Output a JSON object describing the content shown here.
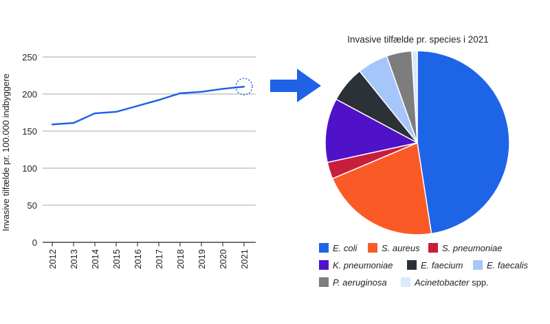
{
  "colors": {
    "line": "#1f62e6",
    "grid": "#a6a6a6",
    "axis": "#222222",
    "arrow": "#1f62e6",
    "highlight_circle": "#1f62e6"
  },
  "chart_data": [
    {
      "type": "line",
      "title": "",
      "xlabel": "",
      "ylabel": "Invasive tilfælde pr. 100.000 indbyggere",
      "x": [
        "2012",
        "2013",
        "2014",
        "2015",
        "2016",
        "2017",
        "2018",
        "2019",
        "2020",
        "2021"
      ],
      "series": [
        {
          "values": [
            159,
            161,
            174,
            176,
            184,
            192,
            201,
            203,
            207,
            210
          ]
        }
      ],
      "ylim": [
        0,
        250
      ],
      "yticks": [
        "0",
        "50",
        "100",
        "150",
        "200",
        "250"
      ],
      "grid": "horizontal",
      "highlighted_point": "2021"
    },
    {
      "type": "pie",
      "title": "Invasive tilfælde pr. species i 2021",
      "slices": [
        {
          "label": "E. coli",
          "suffix": "",
          "value": 48.5,
          "color": "#1e64e6"
        },
        {
          "label": "S. aureus",
          "suffix": "",
          "value": 21.5,
          "color": "#fb5a27"
        },
        {
          "label": "S. pneumoniae",
          "suffix": "",
          "value": 3.0,
          "color": "#c81e3c"
        },
        {
          "label": "K. pneumoniae",
          "suffix": "",
          "value": 11.5,
          "color": "#5012c8"
        },
        {
          "label": "E. faecium",
          "suffix": "",
          "value": 6.5,
          "color": "#2b3136"
        },
        {
          "label": "E. faecalis",
          "suffix": "",
          "value": 5.5,
          "color": "#a5c6fa"
        },
        {
          "label": "P. aeruginosa",
          "suffix": "",
          "value": 4.5,
          "color": "#7d7d7d"
        },
        {
          "label": "Acinetobacter",
          "suffix": " spp.",
          "value": 1.0,
          "color": "#dce8fc"
        }
      ],
      "legend": "bottom"
    }
  ]
}
